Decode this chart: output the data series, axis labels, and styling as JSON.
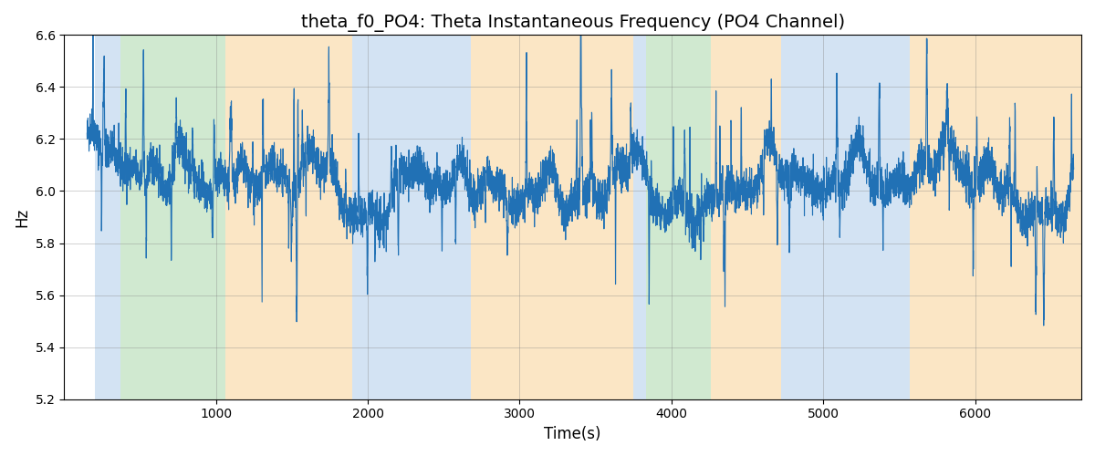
{
  "title": "theta_f0_PO4: Theta Instantaneous Frequency (PO4 Channel)",
  "xlabel": "Time(s)",
  "ylabel": "Hz",
  "ylim": [
    5.2,
    6.6
  ],
  "xlim": [
    0,
    6700
  ],
  "line_color": "#2171b5",
  "line_width": 0.8,
  "grid": true,
  "background_color": "#ffffff",
  "bands": [
    {
      "start": 200,
      "end": 370,
      "color": "#a8c8e8",
      "alpha": 0.5
    },
    {
      "start": 370,
      "end": 1060,
      "color": "#98d098",
      "alpha": 0.45
    },
    {
      "start": 1060,
      "end": 1900,
      "color": "#f8c880",
      "alpha": 0.45
    },
    {
      "start": 1900,
      "end": 2680,
      "color": "#a8c8e8",
      "alpha": 0.5
    },
    {
      "start": 2680,
      "end": 3750,
      "color": "#f8c880",
      "alpha": 0.45
    },
    {
      "start": 3750,
      "end": 3830,
      "color": "#a8c8e8",
      "alpha": 0.5
    },
    {
      "start": 3830,
      "end": 4260,
      "color": "#98d098",
      "alpha": 0.45
    },
    {
      "start": 4260,
      "end": 4720,
      "color": "#f8c880",
      "alpha": 0.45
    },
    {
      "start": 4720,
      "end": 5570,
      "color": "#a8c8e8",
      "alpha": 0.5
    },
    {
      "start": 5570,
      "end": 6700,
      "color": "#f8c880",
      "alpha": 0.45
    }
  ],
  "seed": 42,
  "n_points": 6500,
  "x_start": 150,
  "x_end": 6650,
  "base_freq": 6.0,
  "title_fontsize": 14
}
